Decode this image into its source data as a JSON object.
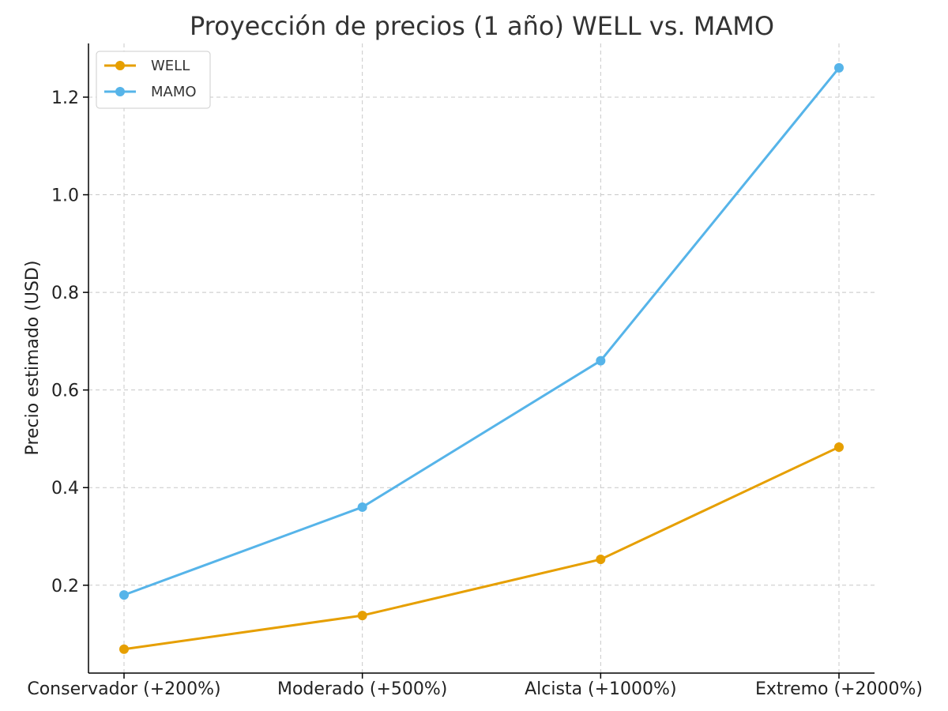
{
  "chart_data": {
    "type": "line",
    "title": "Proyección de precios (1 año) WELL vs. MAMO",
    "xlabel": "",
    "ylabel": "Precio estimado (USD)",
    "categories": [
      "Conservador (+200%)",
      "Moderado (+500%)",
      "Alcista (+1000%)",
      "Extremo (+2000%)"
    ],
    "series": [
      {
        "name": "WELL",
        "color": "#e69f00",
        "values": [
          0.069,
          0.138,
          0.253,
          0.483
        ]
      },
      {
        "name": "MAMO",
        "color": "#56b4e9",
        "values": [
          0.18,
          0.36,
          0.66,
          1.26
        ]
      }
    ],
    "ylim": [
      0.02,
      1.31
    ],
    "yticks": [
      0.2,
      0.4,
      0.6,
      0.8,
      1.0,
      1.2
    ],
    "ytick_labels": [
      "0.2",
      "0.4",
      "0.6",
      "0.8",
      "1.0",
      "1.2"
    ],
    "grid": true,
    "legend": "top-left"
  }
}
